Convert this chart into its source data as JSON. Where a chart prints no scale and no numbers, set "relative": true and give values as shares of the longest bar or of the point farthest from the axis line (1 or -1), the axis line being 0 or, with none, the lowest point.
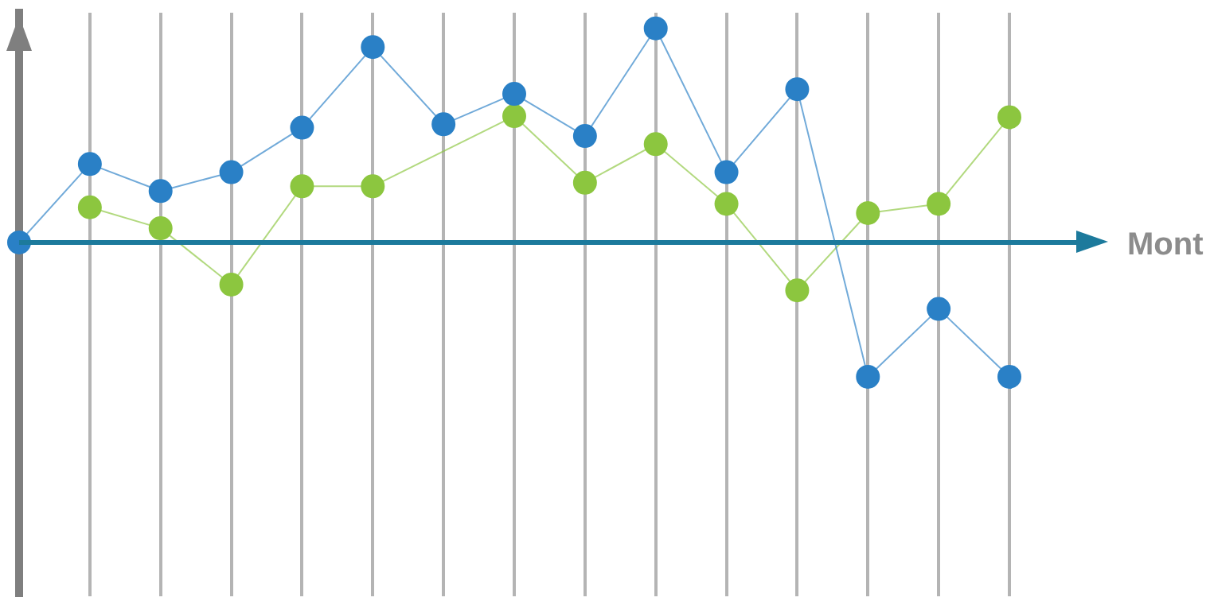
{
  "chart_data": {
    "type": "line",
    "xlabel": "Mont",
    "relative": true,
    "grid": "x",
    "marker": "circle",
    "legend": false,
    "ref_lines": [
      {
        "axis": "y",
        "value": 0,
        "color": "#1c7a9c"
      }
    ],
    "categories": [
      null,
      null,
      null,
      null,
      null,
      null,
      null,
      null,
      null,
      null,
      null,
      null,
      null,
      null,
      null
    ],
    "series": [
      {
        "color": "#2a80c6",
        "values": [
          0,
          0.366,
          0.24,
          0.328,
          0.536,
          0.913,
          0.552,
          0.694,
          0.497,
          1,
          0.328,
          0.716,
          -0.628,
          -0.311,
          -0.628
        ]
      },
      {
        "color": "#8cc63f",
        "values": [
          null,
          0.164,
          0.066,
          -0.197,
          0.262,
          0.262,
          null,
          0.59,
          0.279,
          0.459,
          0.18,
          -0.224,
          0.137,
          0.18,
          0.585
        ]
      }
    ]
  }
}
